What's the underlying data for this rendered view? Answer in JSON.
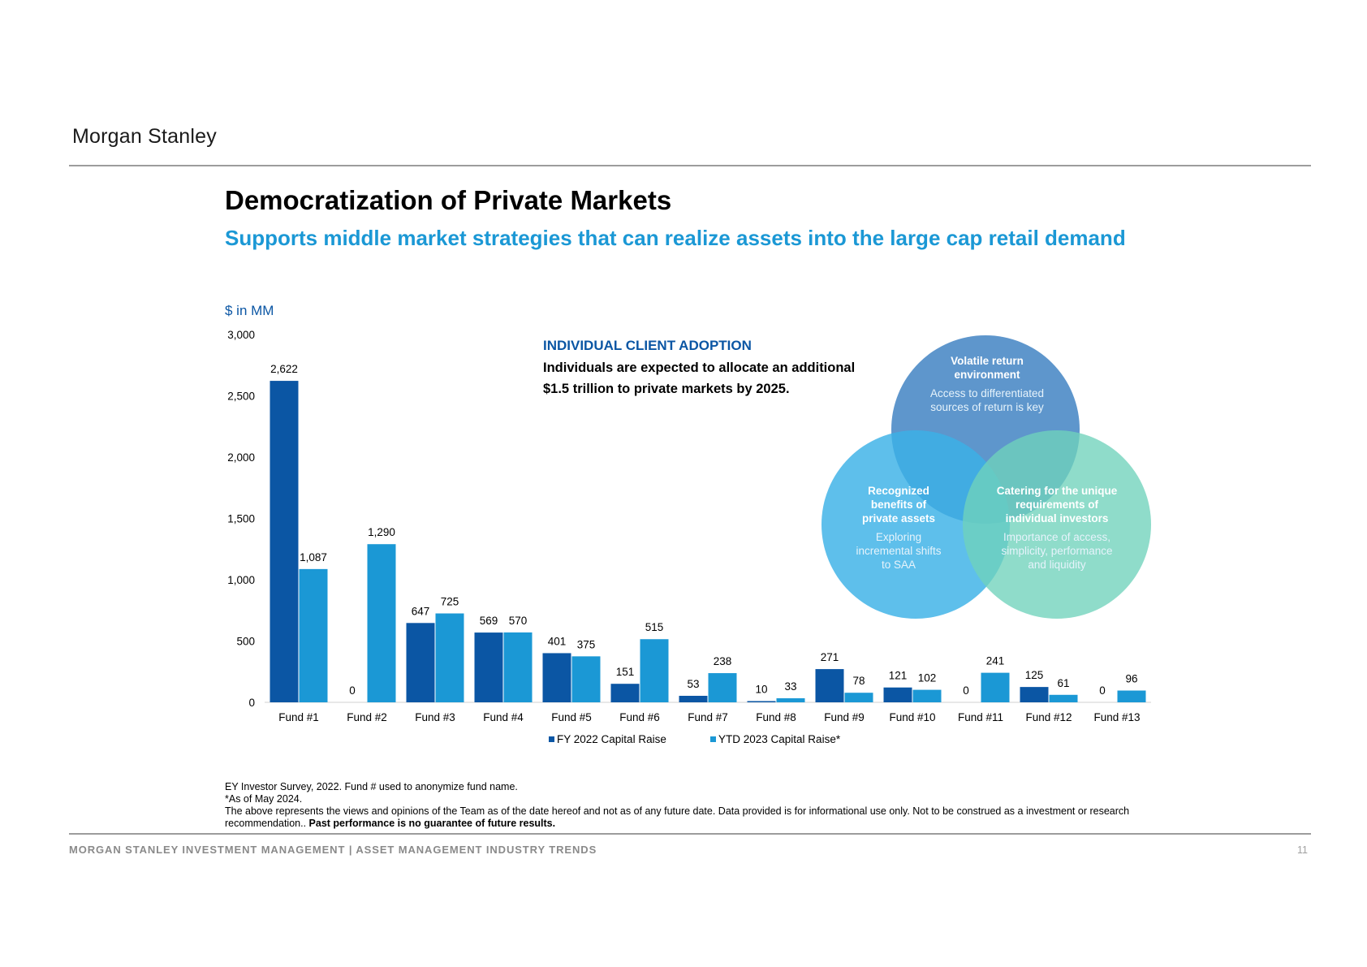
{
  "header": {
    "logo_text": "Morgan Stanley"
  },
  "title": "Democratization of Private Markets",
  "subtitle": "Supports middle market strategies that can realize assets into the large cap retail demand",
  "units_label": "$ in MM",
  "adoption": {
    "title": "INDIVIDUAL CLIENT ADOPTION",
    "text": "Individuals are expected to allocate an additional $1.5 trillion to private markets by 2025."
  },
  "chart_data": {
    "type": "bar",
    "categories": [
      "Fund #1",
      "Fund #2",
      "Fund #3",
      "Fund #4",
      "Fund #5",
      "Fund #6",
      "Fund #7",
      "Fund #8",
      "Fund #9",
      "Fund #10",
      "Fund #11",
      "Fund #12",
      "Fund #13"
    ],
    "series": [
      {
        "name": "FY 2022 Capital Raise",
        "color": "#0b56a4",
        "values": [
          2622,
          0,
          647,
          569,
          401,
          151,
          53,
          10,
          271,
          121,
          0,
          125,
          0
        ],
        "labels": [
          "2,622",
          "0",
          "647",
          "569",
          "401",
          "151",
          "53",
          "10",
          "271",
          "121",
          "0",
          "125",
          "0"
        ]
      },
      {
        "name": "YTD 2023 Capital Raise*",
        "color": "#1b98d5",
        "values": [
          1087,
          1290,
          725,
          570,
          375,
          515,
          238,
          33,
          78,
          102,
          241,
          61,
          96
        ],
        "labels": [
          "1,087",
          "1,290",
          "725",
          "570",
          "375",
          "515",
          "238",
          "33",
          "78",
          "102",
          "241",
          "61",
          "96"
        ]
      }
    ],
    "ylim": [
      0,
      3000
    ],
    "yticks": [
      0,
      500,
      1000,
      1500,
      2000,
      2500,
      3000
    ],
    "ytick_labels": [
      "0",
      "500",
      "1,000",
      "1,500",
      "2,000",
      "2,500",
      "3,000"
    ],
    "grid": false,
    "legend_position": "bottom-center"
  },
  "venn": {
    "top": {
      "heading": "Volatile return environment",
      "body": "Access to differentiated sources of return is key",
      "color": "#3a7fc1"
    },
    "left": {
      "heading": "Recognized benefits of private assets",
      "body": "Exploring incremental shifts to SAA",
      "color": "#3ab1e6"
    },
    "right": {
      "heading": "Catering for the unique requirements of individual investors",
      "body": "Importance of access, simplicity, performance and liquidity",
      "color": "#6fd2bb"
    }
  },
  "footnotes": {
    "line1": "EY Investor Survey, 2022. Fund # used to anonymize fund name.",
    "line2": "*As of May 2024.",
    "line3": "The above represents the views and opinions of the Team as of the date hereof and not as of any future date. Data provided is for informational use only. Not to be construed as a investment or research recommendation..",
    "line3_bold": "Past performance is no guarantee of future results."
  },
  "footer": {
    "left": "MORGAN STANLEY INVESTMENT MANAGEMENT | ASSET MANAGEMENT INDUSTRY TRENDS",
    "page": "11"
  }
}
